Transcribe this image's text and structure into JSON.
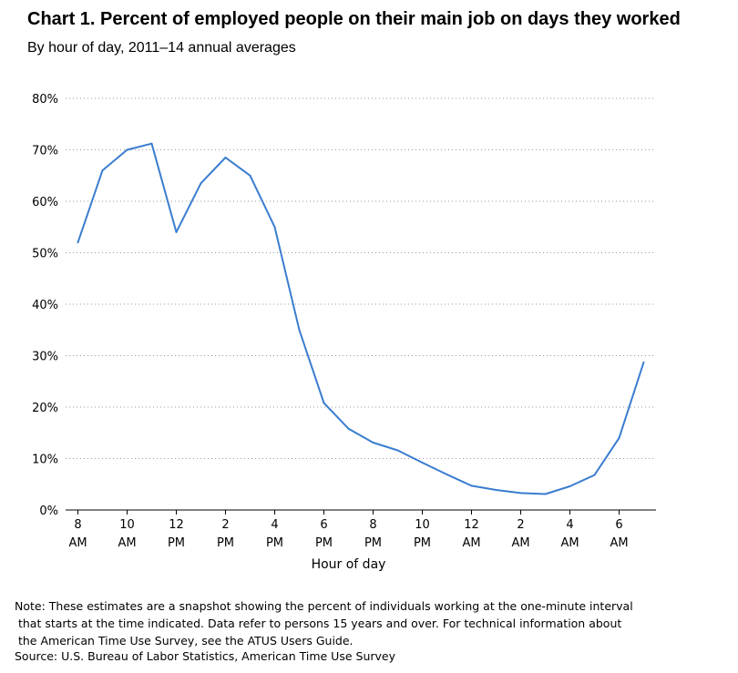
{
  "chart_data": {
    "type": "line",
    "title": "Chart 1. Percent of employed people on their main job on days they worked",
    "subtitle": "By hour of day, 2011–14 annual averages",
    "xlabel": "Hour of day",
    "ylabel": "",
    "ylim": [
      0,
      80
    ],
    "yticks": [
      "0%",
      "10%",
      "20%",
      "30%",
      "40%",
      "50%",
      "60%",
      "70%",
      "80%"
    ],
    "xticks": [
      {
        "hour": 8,
        "line1": "8",
        "line2": "AM"
      },
      {
        "hour": 10,
        "line1": "10",
        "line2": "AM"
      },
      {
        "hour": 12,
        "line1": "12",
        "line2": "PM"
      },
      {
        "hour": 14,
        "line1": "2",
        "line2": "PM"
      },
      {
        "hour": 16,
        "line1": "4",
        "line2": "PM"
      },
      {
        "hour": 18,
        "line1": "6",
        "line2": "PM"
      },
      {
        "hour": 20,
        "line1": "8",
        "line2": "PM"
      },
      {
        "hour": 22,
        "line1": "10",
        "line2": "PM"
      },
      {
        "hour": 24,
        "line1": "12",
        "line2": "AM"
      },
      {
        "hour": 26,
        "line1": "2",
        "line2": "AM"
      },
      {
        "hour": 28,
        "line1": "4",
        "line2": "AM"
      },
      {
        "hour": 30,
        "line1": "6",
        "line2": "AM"
      }
    ],
    "grid": true,
    "series": [
      {
        "color": "#3a7dd0",
        "points": [
          {
            "hour": 8,
            "value": 52
          },
          {
            "hour": 9,
            "value": 66
          },
          {
            "hour": 10,
            "value": 70
          },
          {
            "hour": 11,
            "value": 71.2
          },
          {
            "hour": 12,
            "value": 54
          },
          {
            "hour": 13,
            "value": 63.5
          },
          {
            "hour": 14,
            "value": 68.5
          },
          {
            "hour": 15,
            "value": 65
          },
          {
            "hour": 16,
            "value": 55
          },
          {
            "hour": 17,
            "value": 35
          },
          {
            "hour": 18,
            "value": 20.8
          },
          {
            "hour": 19,
            "value": 15.8
          },
          {
            "hour": 20,
            "value": 13.1
          },
          {
            "hour": 21,
            "value": 11.6
          },
          {
            "hour": 22,
            "value": 9.2
          },
          {
            "hour": 23,
            "value": 6.9
          },
          {
            "hour": 24,
            "value": 4.7
          },
          {
            "hour": 25,
            "value": 3.9
          },
          {
            "hour": 26,
            "value": 3.3
          },
          {
            "hour": 27,
            "value": 3.1
          },
          {
            "hour": 28,
            "value": 4.6
          },
          {
            "hour": 29,
            "value": 6.8
          },
          {
            "hour": 30,
            "value": 14
          },
          {
            "hour": 31,
            "value": 28.7
          }
        ]
      }
    ]
  },
  "note": "Note: These estimates are a snapshot showing the percent of individuals working at the one-minute interval\n that starts at the time indicated. Data refer to persons 15 years and over. For technical information about\n the American Time Use Survey, see the ATUS Users Guide.",
  "source": "Source: U.S. Bureau of Labor Statistics, American Time Use Survey"
}
